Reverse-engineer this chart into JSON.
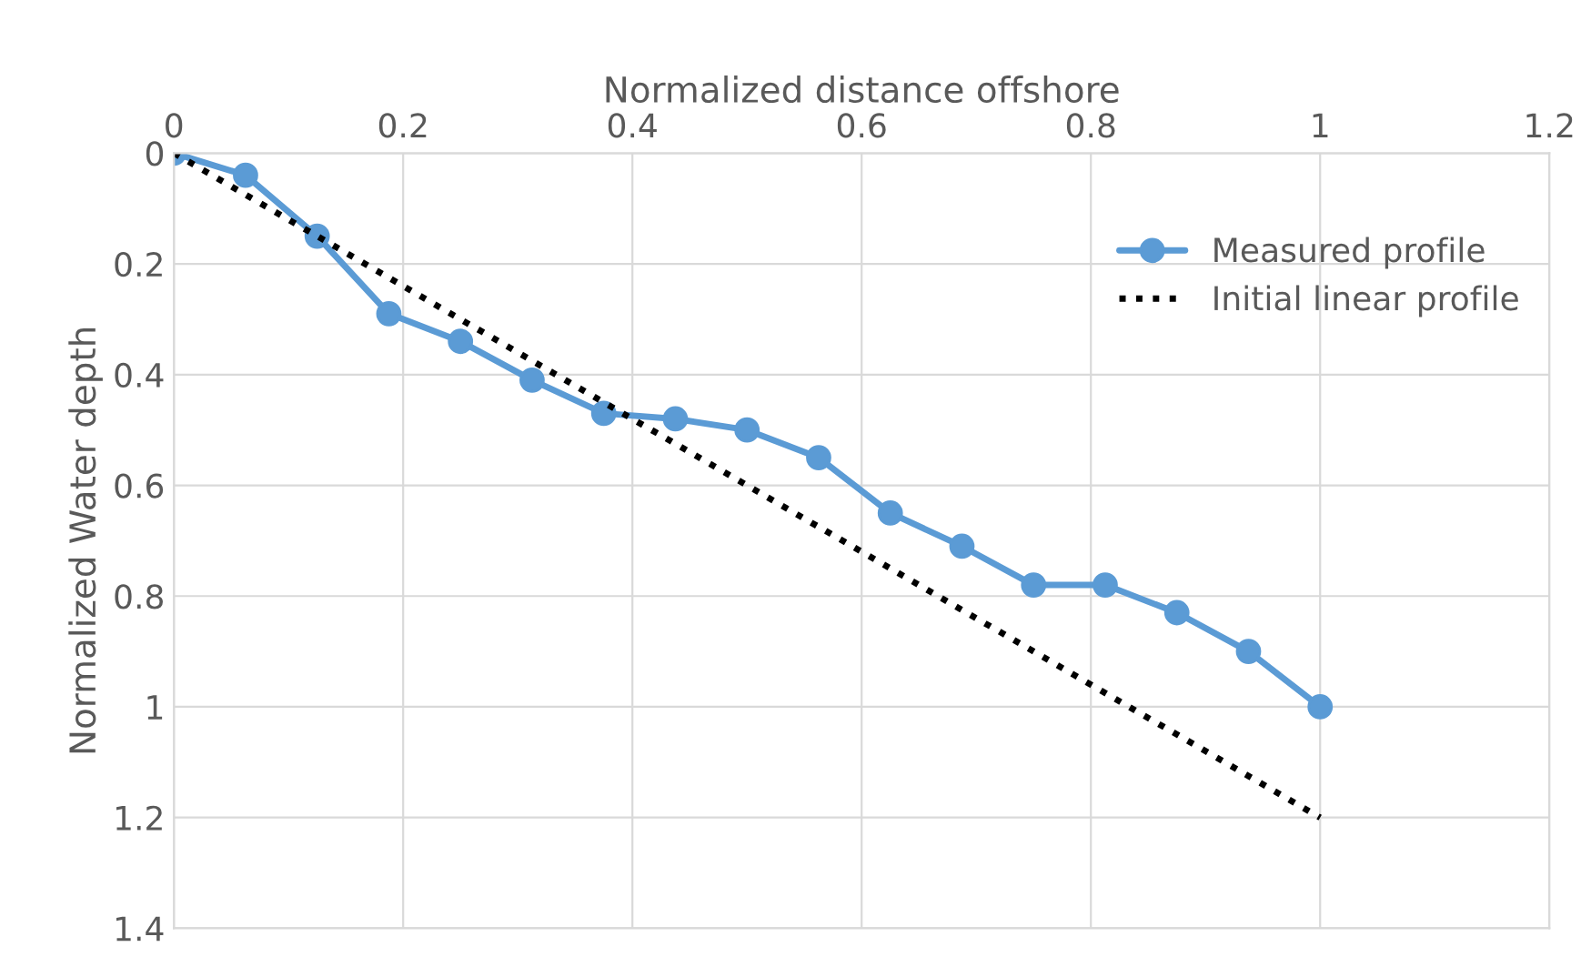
{
  "chart_data": {
    "type": "line",
    "xlabel": "Normalized distance offshore",
    "ylabel": "Normalized Water depth",
    "xlim": [
      0,
      1.2
    ],
    "xticks": [
      0,
      0.2,
      0.4,
      0.6,
      0.8,
      1,
      1.2
    ],
    "ylim": [
      1.4,
      0
    ],
    "yticks": [
      0,
      0.2,
      0.4,
      0.6,
      0.8,
      1,
      1.2,
      1.4
    ],
    "grid": true,
    "legend": "top right",
    "series": [
      {
        "name": "Measured profile",
        "color": "#5b9bd5",
        "marker": "circle",
        "line_style": "solid",
        "x": [
          0,
          0.0625,
          0.125,
          0.1875,
          0.25,
          0.3125,
          0.375,
          0.4375,
          0.5,
          0.5625,
          0.625,
          0.6875,
          0.75,
          0.8125,
          0.875,
          0.9375,
          1
        ],
        "values": [
          0,
          0.04,
          0.15,
          0.29,
          0.34,
          0.41,
          0.47,
          0.48,
          0.5,
          0.55,
          0.65,
          0.71,
          0.78,
          0.78,
          0.83,
          0.9,
          1.0
        ]
      },
      {
        "name": "Initial linear profile",
        "color": "#000000",
        "marker": "none",
        "line_style": "dotted",
        "x": [
          0,
          1
        ],
        "values": [
          0,
          1.2
        ]
      }
    ]
  }
}
